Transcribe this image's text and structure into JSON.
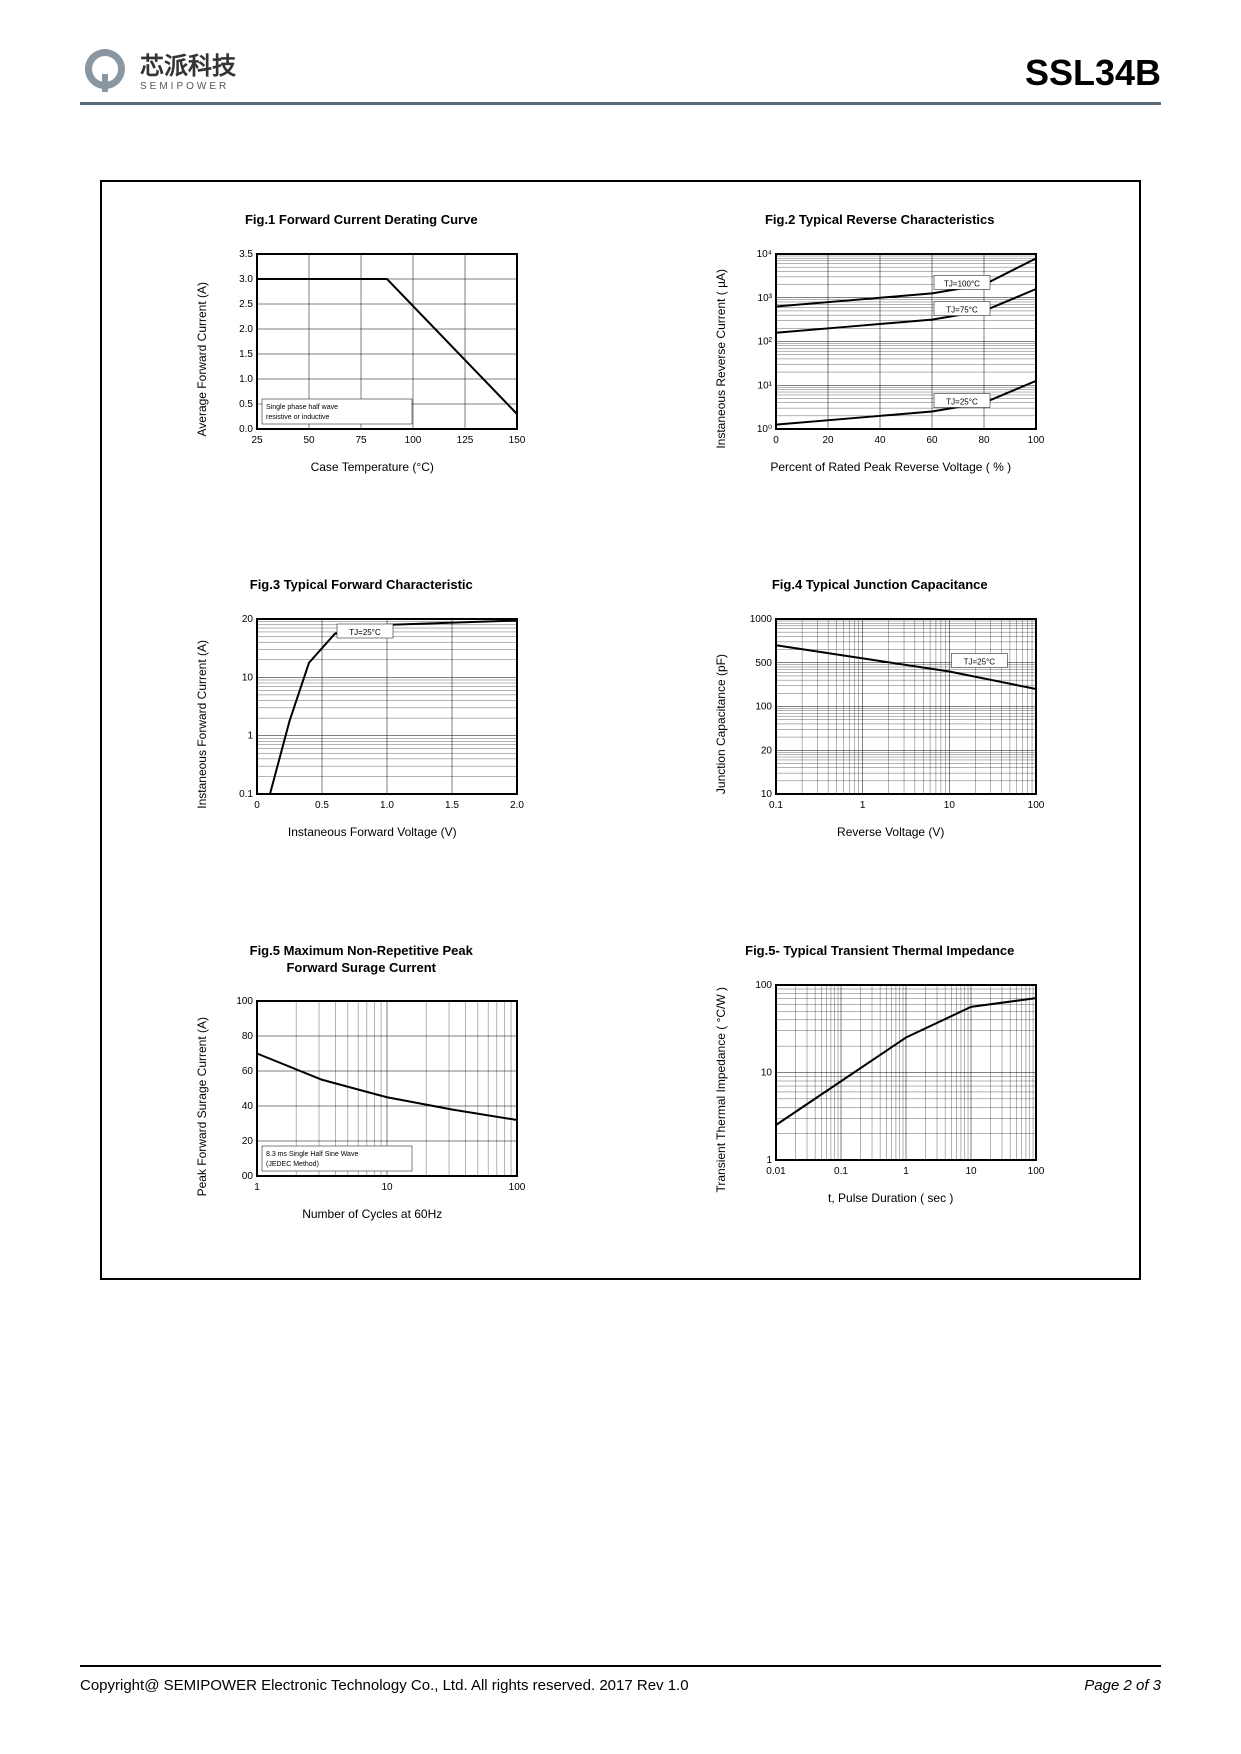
{
  "header": {
    "logo_chinese": "芯派科技",
    "logo_sub": "SEMIPOWER",
    "part_number": "SSL34B"
  },
  "charts": {
    "fig1": {
      "title": "Fig.1  Forward Current Derating Curve",
      "type": "line",
      "x_label": "Case  Temperature (°C)",
      "y_label": "Average Forward Current (A)",
      "x_ticks": [
        "25",
        "50",
        "75",
        "100",
        "125",
        "150"
      ],
      "y_ticks": [
        "0.0",
        "0.5",
        "1.0",
        "1.5",
        "2.0",
        "2.5",
        "3.0",
        "3.5"
      ],
      "xlim": [
        0,
        150
      ],
      "ylim": [
        0,
        3.5
      ],
      "series": [
        {
          "points": [
            [
              0,
              3.0
            ],
            [
              75,
              3.0
            ],
            [
              150,
              0.3
            ]
          ],
          "color": "#000",
          "width": 2
        }
      ],
      "grid_color": "#000",
      "annotation": "Single phase half wave resistive or inductive"
    },
    "fig2": {
      "title": "Fig.2  Typical Reverse Characteristics",
      "type": "semilogy",
      "x_label": "Percent of Rated Peak Reverse Voltage ( % )",
      "y_label": "Instaneous Reverse Current ( µA)",
      "x_ticks": [
        "0",
        "20",
        "40",
        "60",
        "80",
        "100"
      ],
      "y_ticks": [
        "10⁰",
        "10¹",
        "10²",
        "10³",
        "10⁴"
      ],
      "xlim": [
        0,
        100
      ],
      "ylim": [
        0,
        4
      ],
      "series": [
        {
          "label": "TJ=100°C",
          "points": [
            [
              0,
              2.8
            ],
            [
              30,
              2.95
            ],
            [
              60,
              3.1
            ],
            [
              80,
              3.3
            ],
            [
              100,
              3.9
            ]
          ],
          "color": "#000",
          "width": 2
        },
        {
          "label": "TJ=75°C",
          "points": [
            [
              0,
              2.2
            ],
            [
              30,
              2.35
            ],
            [
              60,
              2.5
            ],
            [
              80,
              2.7
            ],
            [
              100,
              3.2
            ]
          ],
          "color": "#000",
          "width": 2
        },
        {
          "label": "TJ=25°C",
          "points": [
            [
              0,
              0.1
            ],
            [
              30,
              0.25
            ],
            [
              60,
              0.4
            ],
            [
              80,
              0.6
            ],
            [
              100,
              1.1
            ]
          ],
          "color": "#000",
          "width": 2
        }
      ],
      "grid_color": "#000"
    },
    "fig3": {
      "title": "Fig.3  Typical Forward Characteristic",
      "type": "semilogy",
      "x_label": "Instaneous Forward Voltage (V)",
      "y_label": "Instaneous Forward Current (A)",
      "x_ticks": [
        "0",
        "0.5",
        "1.0",
        "1.5",
        "2.0"
      ],
      "y_ticks": [
        "0.1",
        "1",
        "10",
        "20"
      ],
      "xlim": [
        0,
        2.0
      ],
      "ylim": [
        -1,
        1.4
      ],
      "series": [
        {
          "label": "TJ=25°C",
          "points": [
            [
              0.1,
              -1
            ],
            [
              0.25,
              0
            ],
            [
              0.4,
              0.8
            ],
            [
              0.6,
              1.2
            ],
            [
              1.0,
              1.32
            ],
            [
              2.0,
              1.38
            ]
          ],
          "color": "#000",
          "width": 2
        }
      ],
      "grid_color": "#000"
    },
    "fig4": {
      "title": "Fig.4  Typical Junction Capacitance",
      "type": "loglog",
      "x_label": "Reverse  Voltage (V)",
      "y_label": "Junction Capacitance (pF)",
      "x_ticks": [
        "0.1",
        "1",
        "10",
        "100"
      ],
      "y_ticks": [
        "10",
        "20",
        "100",
        "500",
        "1000"
      ],
      "xlim": [
        -1,
        2
      ],
      "ylim": [
        1,
        3
      ],
      "series": [
        {
          "label": "TJ=25°C",
          "points": [
            [
              -1,
              2.7
            ],
            [
              0,
              2.55
            ],
            [
              1,
              2.4
            ],
            [
              2,
              2.2
            ]
          ],
          "color": "#000",
          "width": 2
        }
      ],
      "grid_color": "#000"
    },
    "fig5": {
      "title": "Fig.5  Maximum Non-Repetitive Peak\nForward Surage Current",
      "type": "semilogx",
      "x_label": "Number of Cycles at 60Hz",
      "y_label": "Peak Forward Surage Current (A)",
      "x_ticks": [
        "1",
        "10",
        "100"
      ],
      "y_ticks": [
        "00",
        "20",
        "40",
        "60",
        "80",
        "100"
      ],
      "xlim": [
        0,
        2
      ],
      "ylim": [
        0,
        100
      ],
      "series": [
        {
          "points": [
            [
              0,
              70
            ],
            [
              0.5,
              55
            ],
            [
              1,
              45
            ],
            [
              1.5,
              38
            ],
            [
              2,
              32
            ]
          ],
          "color": "#000",
          "width": 2
        }
      ],
      "annotation": "8.3 ms Single Half Sine Wave (JEDEC Method)",
      "grid_color": "#000"
    },
    "fig6": {
      "title": "Fig.5- Typical Transient Thermal Impedance",
      "type": "loglog",
      "x_label": "t, Pulse Duration ( sec )",
      "y_label": "Transient Thermal Impedance ( °C/W )",
      "x_ticks": [
        "0.01",
        "0.1",
        "1",
        "10",
        "100"
      ],
      "y_ticks": [
        "1",
        "10",
        "100"
      ],
      "xlim": [
        -2,
        2
      ],
      "ylim": [
        0,
        2
      ],
      "series": [
        {
          "points": [
            [
              -2,
              0.4
            ],
            [
              -1,
              0.9
            ],
            [
              0,
              1.4
            ],
            [
              1,
              1.75
            ],
            [
              2,
              1.85
            ]
          ],
          "color": "#000",
          "width": 2
        }
      ],
      "grid_color": "#000"
    }
  },
  "footer": {
    "copyright": "Copyright@ SEMIPOWER Electronic Technology Co., Ltd.  All rights reserved.  2017  Rev  1.0",
    "page": "Page 2 of 3"
  },
  "colors": {
    "accent": "#5a6b7a",
    "logo": "#8a96a0"
  }
}
